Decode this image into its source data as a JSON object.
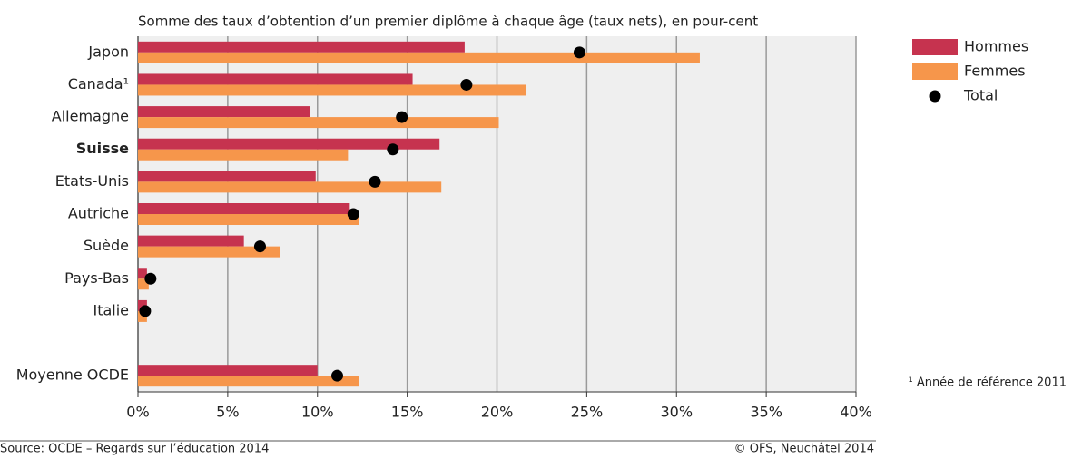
{
  "chart_data": {
    "type": "bar",
    "orientation": "horizontal",
    "title": "Somme des taux d’obtention d’un premier diplôme à chaque âge (taux nets), en pour-cent",
    "categories": [
      "Japon",
      "Canada¹",
      "Allemagne",
      "Suisse",
      "Etats-Unis",
      "Autriche",
      "Suède",
      "Pays-Bas",
      "Italie",
      null,
      "Moyenne OCDE"
    ],
    "series": [
      {
        "name": "Hommes",
        "color": "#c6334f",
        "values": [
          18.2,
          15.3,
          9.6,
          16.8,
          9.9,
          11.8,
          5.9,
          0.5,
          0.5,
          null,
          10.0
        ]
      },
      {
        "name": "Femmes",
        "color": "#f6964b",
        "values": [
          31.3,
          21.6,
          20.1,
          11.7,
          16.9,
          12.3,
          7.9,
          0.6,
          0.5,
          null,
          12.3
        ]
      },
      {
        "name": "Total",
        "color": "#000000",
        "marker": "circle",
        "values": [
          24.6,
          18.3,
          14.7,
          14.2,
          13.2,
          12.0,
          6.8,
          0.7,
          0.4,
          null,
          11.1
        ]
      }
    ],
    "xlim": [
      0,
      40
    ],
    "xticks": [
      {
        "value": 0,
        "label": "0%"
      },
      {
        "value": 5,
        "label": "5%"
      },
      {
        "value": 10,
        "label": "10%"
      },
      {
        "value": 15,
        "label": "15%"
      },
      {
        "value": 20,
        "label": "20%"
      },
      {
        "value": 25,
        "label": "25%"
      },
      {
        "value": 30,
        "label": "30%"
      },
      {
        "value": 35,
        "label": "35%"
      },
      {
        "value": 40,
        "label": "40%"
      }
    ],
    "grid": true,
    "legend": "right",
    "footnote": "¹ Année de référence 2011",
    "source": "Source: OCDE – Regards sur l’éducation 2014",
    "copyright": "© OFS, Neuchâtel 2014"
  }
}
